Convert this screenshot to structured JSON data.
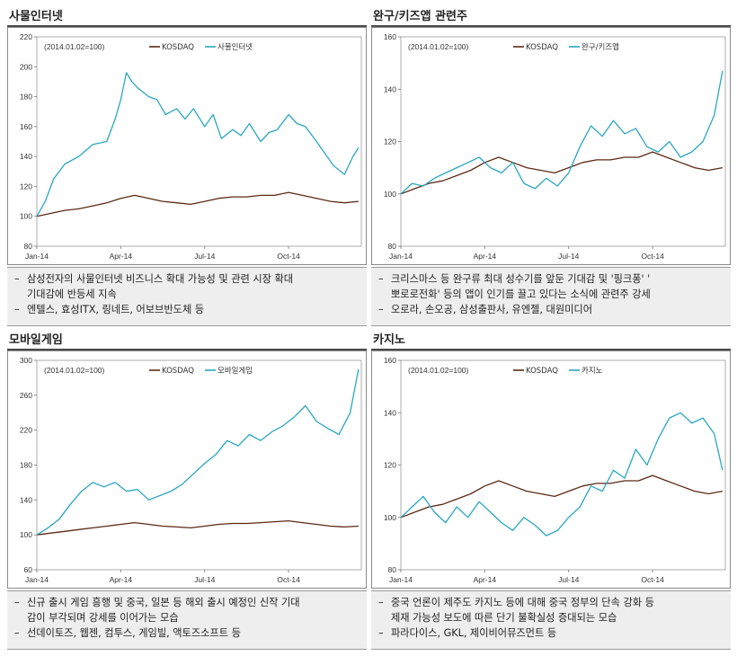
{
  "colors": {
    "kosdaq": "#5a2a14",
    "theme": "#2aa7c0",
    "axis": "#888888",
    "note_bg": "#eeeeee"
  },
  "panels": [
    {
      "title": "사물인터넷",
      "index_note": "(2014.01.02=100)",
      "legend": [
        "KOSDAQ",
        "사물인터넷"
      ],
      "notes": [
        [
          "삼성전자의 사물인터넷 비즈니스 확대 가능성 및 관련 시장 확대",
          "기대감에 반등세 지속"
        ],
        [
          "엔텔스, 효성ITX, 링네트, 어보브반도체 등"
        ]
      ]
    },
    {
      "title": "완구/키즈앱 관련주",
      "index_note": "(2014.01.02=100)",
      "legend": [
        "KOSDAQ",
        "완구/키즈앱"
      ],
      "notes": [
        [
          "크리스마스 등 완구류 최대 성수기를 앞둔 기대감 및 '핑크퐁' '",
          "뽀로로전화' 등의 앱이 인기를 끌고 있다는 소식에 관련주 강세"
        ],
        [
          "오로라, 손오공, 삼성출판사, 유엔젤, 대원미디어"
        ]
      ]
    },
    {
      "title": "모바일게임",
      "index_note": "(2014.01.02=100)",
      "legend": [
        "KOSDAQ",
        "모바일게임"
      ],
      "notes": [
        [
          "신규 출시 게임 흥행 및 중국, 일본 등 해외 출시 예정인 신작 기대",
          "감이 부각되며 강세를 이어가는 모습"
        ],
        [
          "선데이토즈, 웹젠, 컴투스, 게임빌, 액토즈소프트 등"
        ]
      ]
    },
    {
      "title": "카지노",
      "index_note": "(2014.01.02=100)",
      "legend": [
        "KOSDAQ",
        "카지노"
      ],
      "notes": [
        [
          "중국 언론이 제주도 카지노 등에 대해 중국 정부의 단속 강화 등",
          "제재 가능성 보도에 따른 단기 불확실성 증대되는 모습"
        ],
        [
          "파라다이스, GKL, 제이비어뮤즈먼트 등"
        ]
      ]
    }
  ],
  "chart_data": [
    {
      "type": "line",
      "x_ticks": [
        "Jan-14",
        "Apr-14",
        "Jul-14",
        "Oct-14"
      ],
      "x_tick_pos": [
        0,
        3,
        6,
        9
      ],
      "x_range": [
        0,
        11.6
      ],
      "ylim": [
        80,
        220
      ],
      "y_ticks": [
        80,
        100,
        120,
        140,
        160,
        180,
        200,
        220
      ],
      "series": [
        {
          "name": "KOSDAQ",
          "x": [
            0,
            0.5,
            1,
            1.5,
            2,
            2.5,
            3,
            3.5,
            4,
            4.5,
            5,
            5.5,
            6,
            6.5,
            7,
            7.5,
            8,
            8.5,
            9,
            9.5,
            10,
            10.5,
            11,
            11.5
          ],
          "y": [
            100,
            102,
            104,
            105,
            107,
            109,
            112,
            114,
            112,
            110,
            109,
            108,
            110,
            112,
            113,
            113,
            114,
            114,
            116,
            114,
            112,
            110,
            109,
            110
          ]
        },
        {
          "name": "사물인터넷",
          "x": [
            0,
            0.3,
            0.6,
            1,
            1.5,
            2,
            2.5,
            2.8,
            3,
            3.2,
            3.4,
            3.6,
            4,
            4.3,
            4.6,
            5,
            5.3,
            5.6,
            6,
            6.3,
            6.6,
            7,
            7.3,
            7.6,
            8,
            8.3,
            8.6,
            9,
            9.3,
            9.6,
            10,
            10.3,
            10.6,
            11,
            11.3,
            11.5
          ],
          "y": [
            100,
            110,
            125,
            135,
            140,
            148,
            150,
            165,
            178,
            196,
            190,
            186,
            180,
            178,
            168,
            172,
            165,
            172,
            160,
            168,
            152,
            158,
            154,
            162,
            150,
            156,
            158,
            168,
            162,
            160,
            150,
            142,
            134,
            128,
            140,
            146
          ]
        }
      ]
    },
    {
      "type": "line",
      "x_ticks": [
        "Jan-14",
        "Apr-14",
        "Jul-14",
        "Oct-14"
      ],
      "x_tick_pos": [
        0,
        3,
        6,
        9
      ],
      "x_range": [
        0,
        11.6
      ],
      "ylim": [
        80,
        160
      ],
      "y_ticks": [
        80,
        100,
        120,
        140,
        160
      ],
      "series": [
        {
          "name": "KOSDAQ",
          "x": [
            0,
            0.5,
            1,
            1.5,
            2,
            2.5,
            3,
            3.5,
            4,
            4.5,
            5,
            5.5,
            6,
            6.5,
            7,
            7.5,
            8,
            8.5,
            9,
            9.5,
            10,
            10.5,
            11,
            11.5
          ],
          "y": [
            100,
            102,
            104,
            105,
            107,
            109,
            112,
            114,
            112,
            110,
            109,
            108,
            110,
            112,
            113,
            113,
            114,
            114,
            116,
            114,
            112,
            110,
            109,
            110
          ]
        },
        {
          "name": "완구/키즈앱",
          "x": [
            0,
            0.4,
            0.8,
            1.2,
            1.6,
            2,
            2.4,
            2.8,
            3.2,
            3.6,
            4,
            4.4,
            4.8,
            5.2,
            5.6,
            6,
            6.4,
            6.8,
            7.2,
            7.6,
            8,
            8.4,
            8.8,
            9.2,
            9.6,
            10,
            10.4,
            10.8,
            11.2,
            11.5
          ],
          "y": [
            100,
            104,
            103,
            106,
            108,
            110,
            112,
            114,
            110,
            108,
            112,
            104,
            102,
            106,
            103,
            108,
            118,
            126,
            122,
            128,
            123,
            125,
            118,
            116,
            120,
            114,
            116,
            120,
            130,
            147
          ]
        }
      ]
    },
    {
      "type": "line",
      "x_ticks": [
        "Jan-14",
        "Apr-14",
        "Jul-14",
        "Oct-14"
      ],
      "x_tick_pos": [
        0,
        3,
        6,
        9
      ],
      "x_range": [
        0,
        11.6
      ],
      "ylim": [
        60,
        300
      ],
      "y_ticks": [
        60,
        100,
        140,
        180,
        220,
        260,
        300
      ],
      "series": [
        {
          "name": "KOSDAQ",
          "x": [
            0,
            0.5,
            1,
            1.5,
            2,
            2.5,
            3,
            3.5,
            4,
            4.5,
            5,
            5.5,
            6,
            6.5,
            7,
            7.5,
            8,
            8.5,
            9,
            9.5,
            10,
            10.5,
            11,
            11.5
          ],
          "y": [
            100,
            102,
            104,
            106,
            108,
            110,
            112,
            114,
            112,
            110,
            109,
            108,
            110,
            112,
            113,
            113,
            114,
            115,
            116,
            114,
            112,
            110,
            109,
            110
          ]
        },
        {
          "name": "모바일게임",
          "x": [
            0,
            0.4,
            0.8,
            1.2,
            1.6,
            2,
            2.4,
            2.8,
            3.2,
            3.6,
            4,
            4.4,
            4.8,
            5.2,
            5.6,
            6,
            6.4,
            6.8,
            7.2,
            7.6,
            8,
            8.4,
            8.8,
            9.2,
            9.6,
            10,
            10.4,
            10.8,
            11.2,
            11.5
          ],
          "y": [
            100,
            108,
            118,
            135,
            150,
            160,
            155,
            160,
            150,
            152,
            140,
            145,
            150,
            158,
            170,
            182,
            192,
            208,
            202,
            215,
            208,
            218,
            225,
            235,
            248,
            230,
            222,
            215,
            240,
            290
          ]
        }
      ]
    },
    {
      "type": "line",
      "x_ticks": [
        "Jan-14",
        "Apr-14",
        "Jul-14",
        "Oct-14"
      ],
      "x_tick_pos": [
        0,
        3,
        6,
        9
      ],
      "x_range": [
        0,
        11.6
      ],
      "ylim": [
        80,
        160
      ],
      "y_ticks": [
        80,
        100,
        120,
        140,
        160
      ],
      "series": [
        {
          "name": "KOSDAQ",
          "x": [
            0,
            0.5,
            1,
            1.5,
            2,
            2.5,
            3,
            3.5,
            4,
            4.5,
            5,
            5.5,
            6,
            6.5,
            7,
            7.5,
            8,
            8.5,
            9,
            9.5,
            10,
            10.5,
            11,
            11.5
          ],
          "y": [
            100,
            102,
            104,
            105,
            107,
            109,
            112,
            114,
            112,
            110,
            109,
            108,
            110,
            112,
            113,
            113,
            114,
            114,
            116,
            114,
            112,
            110,
            109,
            110
          ]
        },
        {
          "name": "카지노",
          "x": [
            0,
            0.4,
            0.8,
            1.2,
            1.6,
            2,
            2.4,
            2.8,
            3.2,
            3.6,
            4,
            4.4,
            4.8,
            5.2,
            5.6,
            6,
            6.4,
            6.8,
            7.2,
            7.6,
            8,
            8.4,
            8.8,
            9.2,
            9.6,
            10,
            10.4,
            10.8,
            11.2,
            11.5
          ],
          "y": [
            100,
            104,
            108,
            102,
            98,
            104,
            100,
            106,
            102,
            98,
            95,
            100,
            97,
            93,
            95,
            100,
            104,
            112,
            110,
            118,
            115,
            126,
            120,
            130,
            138,
            140,
            136,
            138,
            132,
            118
          ]
        }
      ]
    }
  ]
}
